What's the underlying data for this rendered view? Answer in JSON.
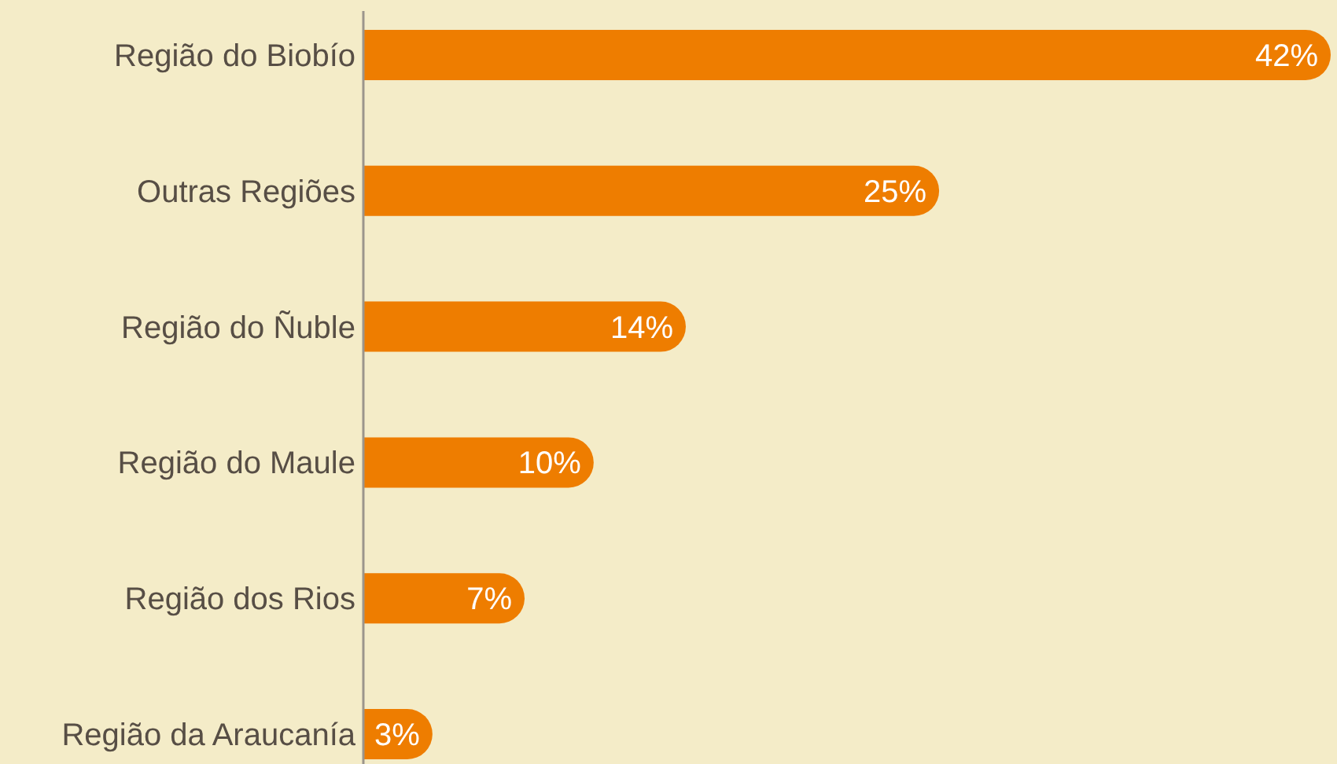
{
  "chart_data": {
    "type": "bar",
    "orientation": "horizontal",
    "categories": [
      "Região do Biobío",
      "Outras Regiões",
      "Região do Ñuble",
      "Região do Maule",
      "Região dos Rios",
      "Região da Araucanía"
    ],
    "values": [
      42,
      25,
      14,
      10,
      7,
      3
    ],
    "color": "#ee7d00",
    "value_labels": [
      "42%",
      "25%",
      "14%",
      "10%",
      "7%",
      "3%"
    ]
  }
}
